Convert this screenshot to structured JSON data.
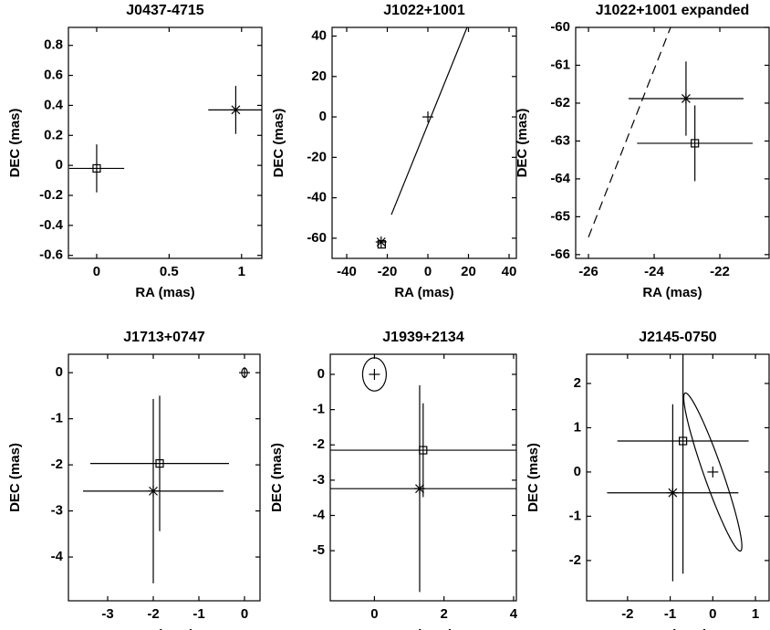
{
  "chart_data": [
    {
      "type": "scatter",
      "title": "J0437-4715",
      "xlabel": "RA (mas)",
      "ylabel": "DEC (mas)",
      "xlim": [
        -0.195,
        1.14
      ],
      "ylim": [
        -0.62,
        0.92
      ],
      "xticks": [
        0,
        0.5,
        1
      ],
      "yticks": [
        -0.6,
        -0.4,
        -0.2,
        0,
        0.2,
        0.4,
        0.6,
        0.8
      ],
      "points": [
        {
          "marker": "square",
          "x": 0,
          "y": -0.02,
          "xerr": 0.19,
          "yerr": 0.16
        },
        {
          "marker": "star",
          "x": 0.96,
          "y": 0.37,
          "xerr": 0.19,
          "yerr": 0.16
        }
      ]
    },
    {
      "type": "scatter",
      "title": "J1022+1001",
      "xlabel": "RA (mas)",
      "ylabel": "DEC (mas)",
      "xlim": [
        -47.2,
        43.6
      ],
      "ylim": [
        -70,
        44.3
      ],
      "xticks": [
        -40,
        -20,
        0,
        20,
        40
      ],
      "yticks": [
        -60,
        -40,
        -20,
        0,
        20,
        40
      ],
      "lines": [
        {
          "style": "solid",
          "x": [
            -18,
            19.3
          ],
          "y": [
            -48.4,
            44.3
          ]
        }
      ],
      "points": [
        {
          "marker": "plus",
          "x": 0,
          "y": 0
        },
        {
          "marker": "star",
          "x": -23.03,
          "y": -61.88
        },
        {
          "marker": "square",
          "x": -22.76,
          "y": -63.06
        }
      ]
    },
    {
      "type": "scatter",
      "title": "J1022+1001 expanded",
      "xlabel": "RA (mas)",
      "ylabel": "DEC (mas)",
      "xlim": [
        -26.39,
        -20.5
      ],
      "ylim": [
        -66.1,
        -60
      ],
      "xticks": [
        -26,
        -24,
        -22
      ],
      "yticks": [
        -66,
        -65,
        -64,
        -63,
        -62,
        -61,
        -60
      ],
      "lines": [
        {
          "style": "dashed",
          "x": [
            -26,
            -23.5
          ],
          "y": [
            -65.54,
            -60
          ]
        }
      ],
      "points": [
        {
          "marker": "star",
          "x": -23.03,
          "y": -61.88,
          "xerr": 1.75,
          "yerr": 0.98
        },
        {
          "marker": "square",
          "x": -22.76,
          "y": -63.06,
          "xerr": 1.76,
          "yerr": 1.0
        }
      ]
    },
    {
      "type": "scatter",
      "title": "J1713+0747",
      "xlabel": "RA (mas)",
      "ylabel": "DEC (mas)",
      "xlim": [
        -3.86,
        0.34
      ],
      "ylim": [
        -4.95,
        0.4
      ],
      "xticks": [
        -3,
        -2,
        -1,
        0
      ],
      "yticks": [
        -4,
        -3,
        -2,
        -1,
        0
      ],
      "ellipses": [
        {
          "x": 0,
          "y": 0,
          "a": 0.1,
          "b": 0.06,
          "angle": 90
        }
      ],
      "points": [
        {
          "marker": "plus",
          "x": 0,
          "y": 0
        },
        {
          "marker": "square",
          "x": -1.86,
          "y": -1.97,
          "xerr": 1.52,
          "yerr": 1.47
        },
        {
          "marker": "star",
          "x": -2.0,
          "y": -2.57,
          "xerr": 1.54,
          "yerr": 2.0
        }
      ]
    },
    {
      "type": "scatter",
      "title": "J1939+2134",
      "xlabel": "RA (mas)",
      "ylabel": "DEC (mas)",
      "xlim": [
        -1.27,
        4.08
      ],
      "ylim": [
        -6.42,
        0.57
      ],
      "xticks": [
        0,
        2,
        4
      ],
      "yticks": [
        -5,
        -4,
        -3,
        -2,
        -1,
        0
      ],
      "ellipses": [
        {
          "x": 0,
          "y": 0,
          "a": 0.47,
          "b": 0.34,
          "angle": 90
        }
      ],
      "points": [
        {
          "marker": "plus",
          "x": 0,
          "y": 0
        },
        {
          "marker": "square",
          "x": 1.4,
          "y": -2.15,
          "xerr": 3,
          "yerr": 1.33
        },
        {
          "marker": "star",
          "x": 1.3,
          "y": -3.24,
          "xerr": 3,
          "yerr": 2.93
        }
      ]
    },
    {
      "type": "scatter",
      "title": "J2145-0750",
      "xlabel": "RA (mas)",
      "ylabel": "DEC (mas)",
      "xlim": [
        -2.96,
        1.32
      ],
      "ylim": [
        -2.91,
        2.66
      ],
      "xticks": [
        -2,
        -1,
        0,
        1
      ],
      "yticks": [
        -2,
        -1,
        0,
        1,
        2
      ],
      "ellipses": [
        {
          "x": 0,
          "y": 0,
          "a": 1.9,
          "b": 0.22,
          "angle": 110
        }
      ],
      "points": [
        {
          "marker": "plus",
          "x": 0,
          "y": 0
        },
        {
          "marker": "square",
          "x": -0.7,
          "y": 0.7,
          "xerr": 1.54,
          "yerr": 3
        },
        {
          "marker": "star",
          "x": -0.94,
          "y": -0.47,
          "xerr": 1.54,
          "yerr": 2
        }
      ]
    }
  ]
}
